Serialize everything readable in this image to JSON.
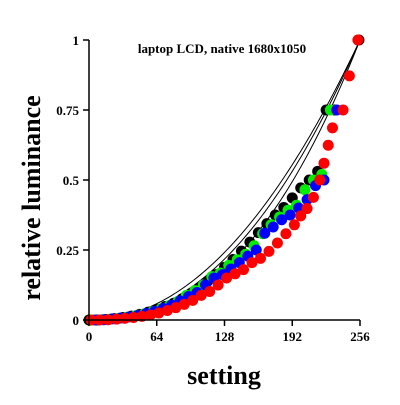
{
  "chart_data": {
    "type": "scatter",
    "title": "laptop LCD, native 1680x1050",
    "xlabel": "setting",
    "ylabel": "relative luminance",
    "xlim": [
      0,
      256
    ],
    "ylim": [
      0,
      1
    ],
    "xticks": [
      0,
      64,
      128,
      192,
      256
    ],
    "xtick_labels": [
      "0",
      "64",
      "128",
      "192",
      "256"
    ],
    "yticks": [
      0,
      0.25,
      0.5,
      0.75,
      1
    ],
    "ytick_labels": [
      "0",
      "0.25",
      "0.5",
      "0.75",
      "1"
    ],
    "grid": false,
    "legend": "none",
    "series": [
      {
        "color": "#000000",
        "points": [
          [
            0,
            0
          ],
          [
            8,
            0
          ],
          [
            16,
            0.002
          ],
          [
            24,
            0.005
          ],
          [
            32,
            0.009
          ],
          [
            40,
            0.014
          ],
          [
            48,
            0.02
          ],
          [
            56,
            0.028
          ],
          [
            64,
            0.038
          ],
          [
            72,
            0.048
          ],
          [
            80,
            0.06
          ],
          [
            88,
            0.076
          ],
          [
            96,
            0.094
          ],
          [
            104,
            0.114
          ],
          [
            112,
            0.138
          ],
          [
            120,
            0.162
          ],
          [
            128,
            0.188
          ],
          [
            136,
            0.216
          ],
          [
            144,
            0.246
          ],
          [
            152,
            0.278
          ],
          [
            160,
            0.312
          ],
          [
            168,
            0.344
          ],
          [
            176,
            0.375
          ],
          [
            184,
            0.402
          ],
          [
            192,
            0.436
          ],
          [
            200,
            0.472
          ],
          [
            208,
            0.5
          ],
          [
            216,
            0.531
          ],
          [
            224,
            0.75
          ],
          [
            232,
            0.75
          ],
          [
            255,
            1.0
          ]
        ]
      },
      {
        "color": "#00ee00",
        "points": [
          [
            4,
            0
          ],
          [
            12,
            0.001
          ],
          [
            20,
            0.003
          ],
          [
            28,
            0.006
          ],
          [
            36,
            0.01
          ],
          [
            44,
            0.015
          ],
          [
            52,
            0.022
          ],
          [
            60,
            0.03
          ],
          [
            68,
            0.04
          ],
          [
            76,
            0.052
          ],
          [
            84,
            0.066
          ],
          [
            92,
            0.088
          ],
          [
            100,
            0.105
          ],
          [
            108,
            0.125
          ],
          [
            116,
            0.155
          ],
          [
            124,
            0.168
          ],
          [
            132,
            0.195
          ],
          [
            140,
            0.215
          ],
          [
            148,
            0.235
          ],
          [
            156,
            0.265
          ],
          [
            164,
            0.308
          ],
          [
            172,
            0.34
          ],
          [
            180,
            0.368
          ],
          [
            188,
            0.392
          ],
          [
            196,
            0.41
          ],
          [
            204,
            0.465
          ],
          [
            212,
            0.5
          ],
          [
            220,
            0.52
          ],
          [
            228,
            0.75
          ]
        ]
      },
      {
        "color": "#0000ff",
        "points": [
          [
            6,
            0
          ],
          [
            14,
            0.001
          ],
          [
            22,
            0.004
          ],
          [
            30,
            0.007
          ],
          [
            38,
            0.011
          ],
          [
            46,
            0.016
          ],
          [
            54,
            0.023
          ],
          [
            62,
            0.031
          ],
          [
            70,
            0.041
          ],
          [
            78,
            0.053
          ],
          [
            86,
            0.068
          ],
          [
            94,
            0.084
          ],
          [
            102,
            0.098
          ],
          [
            110,
            0.125
          ],
          [
            118,
            0.15
          ],
          [
            126,
            0.162
          ],
          [
            134,
            0.182
          ],
          [
            142,
            0.205
          ],
          [
            150,
            0.228
          ],
          [
            158,
            0.25
          ],
          [
            166,
            0.31
          ],
          [
            174,
            0.332
          ],
          [
            182,
            0.358
          ],
          [
            190,
            0.375
          ],
          [
            198,
            0.4
          ],
          [
            206,
            0.43
          ],
          [
            214,
            0.48
          ],
          [
            222,
            0.5
          ],
          [
            234,
            0.75
          ]
        ]
      },
      {
        "color": "#ff0000",
        "points": [
          [
            2,
            0
          ],
          [
            10,
            0
          ],
          [
            18,
            0.001
          ],
          [
            26,
            0.003
          ],
          [
            34,
            0.006
          ],
          [
            42,
            0.009
          ],
          [
            50,
            0.013
          ],
          [
            58,
            0.018
          ],
          [
            66,
            0.025
          ],
          [
            74,
            0.034
          ],
          [
            82,
            0.044
          ],
          [
            90,
            0.056
          ],
          [
            98,
            0.07
          ],
          [
            106,
            0.088
          ],
          [
            114,
            0.102
          ],
          [
            122,
            0.125
          ],
          [
            130,
            0.15
          ],
          [
            138,
            0.165
          ],
          [
            146,
            0.18
          ],
          [
            154,
            0.205
          ],
          [
            162,
            0.22
          ],
          [
            170,
            0.245
          ],
          [
            178,
            0.275
          ],
          [
            186,
            0.308
          ],
          [
            194,
            0.34
          ],
          [
            200,
            0.372
          ],
          [
            206,
            0.398
          ],
          [
            212,
            0.438
          ],
          [
            218,
            0.5
          ],
          [
            222,
            0.56
          ],
          [
            226,
            0.624
          ],
          [
            230,
            0.686
          ],
          [
            240,
            0.75
          ],
          [
            246,
            0.872
          ],
          [
            254,
            1.0
          ]
        ]
      }
    ],
    "fit_curves": [
      {
        "color": "#000000",
        "gamma": 2.05
      },
      {
        "color": "#000000",
        "gamma": 2.2
      },
      {
        "color": "#000000",
        "gamma": 2.45
      }
    ]
  }
}
